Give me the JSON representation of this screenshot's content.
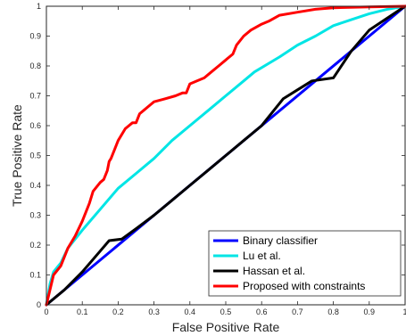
{
  "chart_data": {
    "type": "line",
    "title": "",
    "xlabel": "False Positive Rate",
    "ylabel": "True Positive Rate",
    "xlim": [
      0,
      1
    ],
    "ylim": [
      0,
      1
    ],
    "x_ticks": [
      "0",
      "0.1",
      "0.2",
      "0.3",
      "0.4",
      "0.5",
      "0.6",
      "0.7",
      "0.8",
      "0.9",
      "1"
    ],
    "y_ticks": [
      "0",
      "0.1",
      "0.2",
      "0.3",
      "0.4",
      "0.5",
      "0.6",
      "0.7",
      "0.8",
      "0.9",
      "1"
    ],
    "grid": false,
    "legend_position": "bottom-right",
    "series": [
      {
        "name": "Binary classifier",
        "color": "#0000ff",
        "points": [
          [
            0,
            0
          ],
          [
            1,
            1
          ]
        ]
      },
      {
        "name": "Lu et al.",
        "color": "#00e5e5",
        "points": [
          [
            0,
            0
          ],
          [
            0.01,
            0.07
          ],
          [
            0.02,
            0.11
          ],
          [
            0.04,
            0.14
          ],
          [
            0.06,
            0.19
          ],
          [
            0.08,
            0.22
          ],
          [
            0.1,
            0.25
          ],
          [
            0.15,
            0.32
          ],
          [
            0.2,
            0.39
          ],
          [
            0.25,
            0.44
          ],
          [
            0.3,
            0.49
          ],
          [
            0.35,
            0.55
          ],
          [
            0.4,
            0.6
          ],
          [
            0.45,
            0.65
          ],
          [
            0.5,
            0.7
          ],
          [
            0.55,
            0.75
          ],
          [
            0.58,
            0.78
          ],
          [
            0.65,
            0.83
          ],
          [
            0.7,
            0.87
          ],
          [
            0.75,
            0.9
          ],
          [
            0.8,
            0.935
          ],
          [
            0.85,
            0.955
          ],
          [
            0.9,
            0.975
          ],
          [
            0.95,
            0.99
          ],
          [
            1,
            1
          ]
        ]
      },
      {
        "name": "Hassan et al.",
        "color": "#000000",
        "points": [
          [
            0,
            0
          ],
          [
            0.05,
            0.05
          ],
          [
            0.1,
            0.11
          ],
          [
            0.15,
            0.18
          ],
          [
            0.175,
            0.215
          ],
          [
            0.21,
            0.22
          ],
          [
            0.25,
            0.255
          ],
          [
            0.3,
            0.3
          ],
          [
            0.35,
            0.35
          ],
          [
            0.4,
            0.4
          ],
          [
            0.45,
            0.45
          ],
          [
            0.5,
            0.5
          ],
          [
            0.55,
            0.55
          ],
          [
            0.6,
            0.6
          ],
          [
            0.66,
            0.69
          ],
          [
            0.7,
            0.72
          ],
          [
            0.74,
            0.75
          ],
          [
            0.8,
            0.76
          ],
          [
            0.85,
            0.85
          ],
          [
            0.9,
            0.92
          ],
          [
            0.95,
            0.96
          ],
          [
            1,
            1
          ]
        ]
      },
      {
        "name": "Proposed with constraints",
        "color": "#ff0000",
        "points": [
          [
            0,
            0
          ],
          [
            0.02,
            0.1
          ],
          [
            0.04,
            0.13
          ],
          [
            0.06,
            0.19
          ],
          [
            0.08,
            0.23
          ],
          [
            0.1,
            0.28
          ],
          [
            0.12,
            0.34
          ],
          [
            0.13,
            0.38
          ],
          [
            0.15,
            0.41
          ],
          [
            0.16,
            0.42
          ],
          [
            0.17,
            0.45
          ],
          [
            0.175,
            0.48
          ],
          [
            0.18,
            0.49
          ],
          [
            0.19,
            0.52
          ],
          [
            0.2,
            0.55
          ],
          [
            0.22,
            0.59
          ],
          [
            0.24,
            0.61
          ],
          [
            0.25,
            0.61
          ],
          [
            0.26,
            0.64
          ],
          [
            0.27,
            0.65
          ],
          [
            0.29,
            0.67
          ],
          [
            0.3,
            0.68
          ],
          [
            0.33,
            0.69
          ],
          [
            0.36,
            0.7
          ],
          [
            0.38,
            0.71
          ],
          [
            0.39,
            0.71
          ],
          [
            0.4,
            0.74
          ],
          [
            0.42,
            0.75
          ],
          [
            0.44,
            0.76
          ],
          [
            0.46,
            0.78
          ],
          [
            0.48,
            0.8
          ],
          [
            0.5,
            0.82
          ],
          [
            0.52,
            0.84
          ],
          [
            0.53,
            0.87
          ],
          [
            0.55,
            0.9
          ],
          [
            0.57,
            0.92
          ],
          [
            0.6,
            0.94
          ],
          [
            0.62,
            0.95
          ],
          [
            0.65,
            0.97
          ],
          [
            0.7,
            0.98
          ],
          [
            0.75,
            0.99
          ],
          [
            0.8,
            0.995
          ],
          [
            0.9,
            0.998
          ],
          [
            1,
            1
          ]
        ]
      }
    ]
  }
}
